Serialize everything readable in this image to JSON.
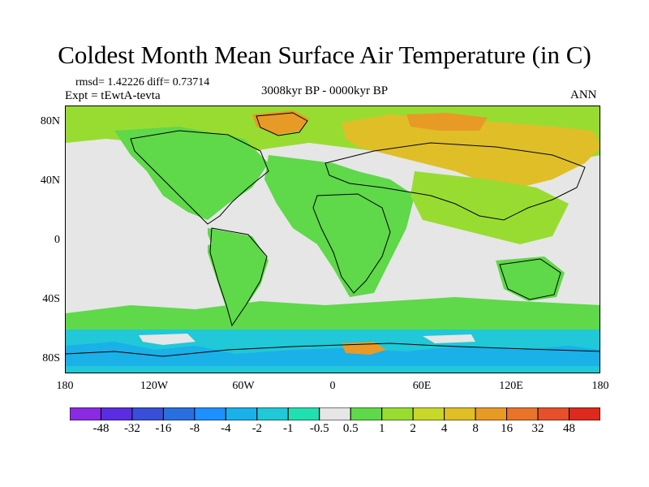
{
  "title": "Coldest Month Mean Surface Air Temperature (in C)",
  "stats": "rmsd= 1.42226 diff= 0.73714",
  "experiment": "Expt = tEwtA-tevta",
  "period": "3008kyr BP - 0000kyr BP",
  "season": "ANN",
  "axes": {
    "lat_labels": [
      "80N",
      "40N",
      "0",
      "40S",
      "80S"
    ],
    "lon_labels": [
      "180",
      "120W",
      "60W",
      "0",
      "60E",
      "120E",
      "180"
    ]
  },
  "colorbar": {
    "levels": [
      "-48",
      "-32",
      "-16",
      "-8",
      "-4",
      "-2",
      "-1",
      "-0.5",
      "0.5",
      "1",
      "2",
      "4",
      "8",
      "16",
      "32",
      "48"
    ],
    "colors": [
      "#8a2be2",
      "#5a2de0",
      "#3a4fd8",
      "#2a6fe0",
      "#1e90ff",
      "#1ab0e8",
      "#20c8d8",
      "#22dfb0",
      "#e6e6e6",
      "#5fd84a",
      "#98dc32",
      "#c8d82a",
      "#e0be28",
      "#e89a26",
      "#e8742a",
      "#e6502a",
      "#dc2a1e"
    ]
  }
}
